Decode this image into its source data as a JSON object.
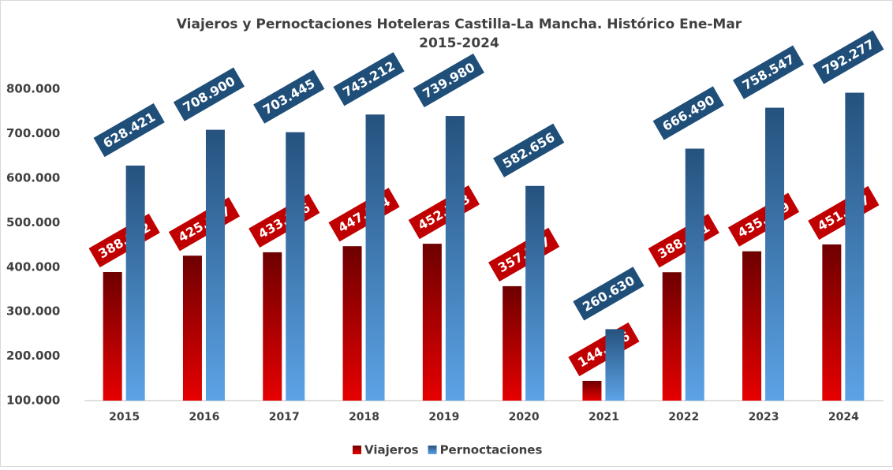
{
  "chart_data": {
    "type": "bar",
    "title": [
      "Viajeros y Pernoctaciones Hoteleras Castilla-La Mancha. Histórico Ene-Mar",
      "2015-2024"
    ],
    "categories": [
      "2015",
      "2016",
      "2017",
      "2018",
      "2019",
      "2020",
      "2021",
      "2022",
      "2023",
      "2024"
    ],
    "series": [
      {
        "name": "Viajeros",
        "color": "#c00000",
        "values": [
          388982,
          425847,
          433516,
          447174,
          452703,
          357247,
          144406,
          388611,
          435699,
          451097
        ],
        "value_labels": [
          "388.982",
          "425.847",
          "433.516",
          "447.174",
          "452.703",
          "357.247",
          "144.406",
          "388.611",
          "435.699",
          "451.097"
        ]
      },
      {
        "name": "Pernoctaciones",
        "color": "#1f4e79",
        "values": [
          628421,
          708900,
          703445,
          743212,
          739980,
          582656,
          260630,
          666490,
          758547,
          792277
        ],
        "value_labels": [
          "628.421",
          "708.900",
          "703.445",
          "743.212",
          "739.980",
          "582.656",
          "260.630",
          "666.490",
          "758.547",
          "792.277"
        ]
      }
    ],
    "ylim": [
      100000,
      850000
    ],
    "yticks": [
      {
        "value": 100000,
        "label": "100.000"
      },
      {
        "value": 200000,
        "label": "200.000"
      },
      {
        "value": 300000,
        "label": "300.000"
      },
      {
        "value": 400000,
        "label": "400.000"
      },
      {
        "value": 500000,
        "label": "500.000"
      },
      {
        "value": 600000,
        "label": "600.000"
      },
      {
        "value": 700000,
        "label": "700.000"
      },
      {
        "value": 800000,
        "label": "800.000"
      }
    ],
    "grid": false,
    "legend": "bottom"
  }
}
